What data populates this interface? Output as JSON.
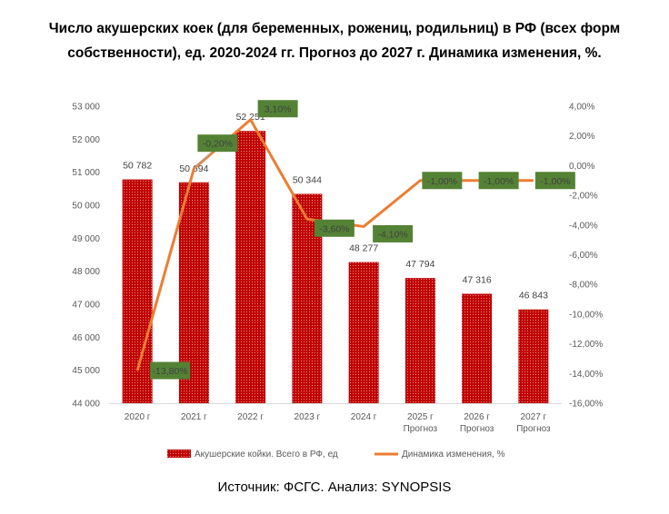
{
  "title": "Число акушерских коек (для беременных, рожениц, родильниц) в РФ (всех форм собственности), ед. 2020-2024 гг. Прогноз до 2027 г. Динамика изменения, %.",
  "source": "Источник: ФСГС. Анализ: SYNOPSIS",
  "chart_data": {
    "type": "bar",
    "categories": [
      "2020 г",
      "2021 г",
      "2022 г",
      "2023 г",
      "2024 г",
      "2025 г\nПрогноз",
      "2026 г\nПрогноз",
      "2027 г\nПрогноз"
    ],
    "series": [
      {
        "name": "Акушерские койки. Всего в РФ, ед",
        "type": "bar",
        "axis": "left",
        "values": [
          50782,
          50694,
          52251,
          50344,
          48277,
          47794,
          47316,
          46843
        ],
        "labels": [
          "50 782",
          "50 694",
          "52 251",
          "50 344",
          "48 277",
          "47 794",
          "47 316",
          "46 843"
        ],
        "color": "#c00000"
      },
      {
        "name": "Динамика изменения, %",
        "type": "line",
        "axis": "right",
        "values": [
          -13.8,
          -0.2,
          3.1,
          -3.6,
          -4.1,
          -1.0,
          -1.0,
          -1.0
        ],
        "labels": [
          "-13,80%",
          "-0,20%",
          "3,10%",
          "-3,60%",
          "-4,10%",
          "-1,00%",
          "-1,00%",
          "-1,00%"
        ],
        "color": "#ed7d31",
        "label_bg": "#548235"
      }
    ],
    "left_axis": {
      "ylim": [
        44000,
        53000
      ],
      "ticks": [
        "44 000",
        "45 000",
        "46 000",
        "47 000",
        "48 000",
        "49 000",
        "50 000",
        "51 000",
        "52 000",
        "53 000"
      ]
    },
    "right_axis": {
      "ylim": [
        -16,
        4
      ],
      "ticks": [
        "-16,00%",
        "-14,00%",
        "-12,00%",
        "-10,00%",
        "-8,00%",
        "-6,00%",
        "-4,00%",
        "-2,00%",
        "0,00%",
        "2,00%",
        "4,00%"
      ]
    },
    "legend_position": "bottom",
    "grid": false
  }
}
